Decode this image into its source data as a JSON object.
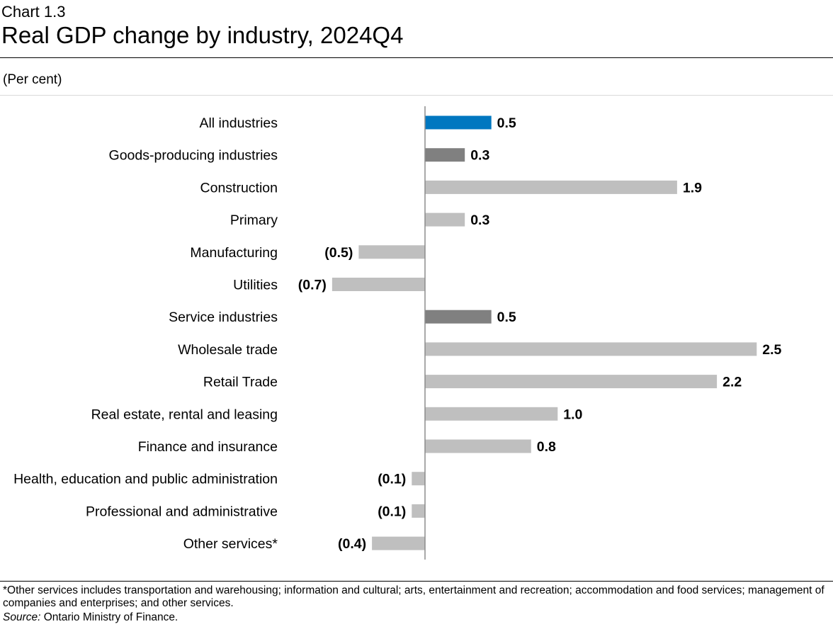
{
  "header": {
    "chart_number": "Chart 1.3",
    "title": "Real GDP change by industry, 2024Q4"
  },
  "colors": {
    "highlight": "#0077c0",
    "group": "#808080",
    "industry": "#bfbfbf",
    "axis": "#8c8c8c"
  },
  "chart_data": {
    "type": "bar",
    "orientation": "horizontal",
    "title": "Real GDP change by industry, 2024Q4",
    "ylabel": "(Per cent)",
    "xlim": [
      -0.7,
      2.5
    ],
    "categories": [
      "All industries",
      "Goods-producing industries",
      "Construction",
      "Primary",
      "Manufacturing",
      "Utilities",
      "Service industries",
      "Wholesale trade",
      "Retail Trade",
      "Real estate, rental and leasing",
      "Finance and insurance",
      "Health, education and public administration",
      "Professional and administrative",
      "Other services*"
    ],
    "values": [
      0.5,
      0.3,
      1.9,
      0.3,
      -0.5,
      -0.7,
      0.5,
      2.5,
      2.2,
      1.0,
      0.8,
      -0.1,
      -0.1,
      -0.4
    ],
    "data_labels": [
      "0.5",
      "0.3",
      "1.9",
      "0.3",
      "(0.5)",
      "(0.7)",
      "0.5",
      "2.5",
      "2.2",
      "1.0",
      "0.8",
      "(0.1)",
      "(0.1)",
      "(0.4)"
    ],
    "bar_kind": [
      "highlight",
      "group",
      "industry",
      "industry",
      "industry",
      "industry",
      "group",
      "industry",
      "industry",
      "industry",
      "industry",
      "industry",
      "industry",
      "industry"
    ]
  },
  "footer": {
    "note": "*Other services includes transportation and warehousing; information and cultural; arts, entertainment and recreation; accommodation and food services; management of companies and enterprises; and other services.",
    "source_label": "Source:",
    "source_text": " Ontario Ministry of Finance."
  }
}
